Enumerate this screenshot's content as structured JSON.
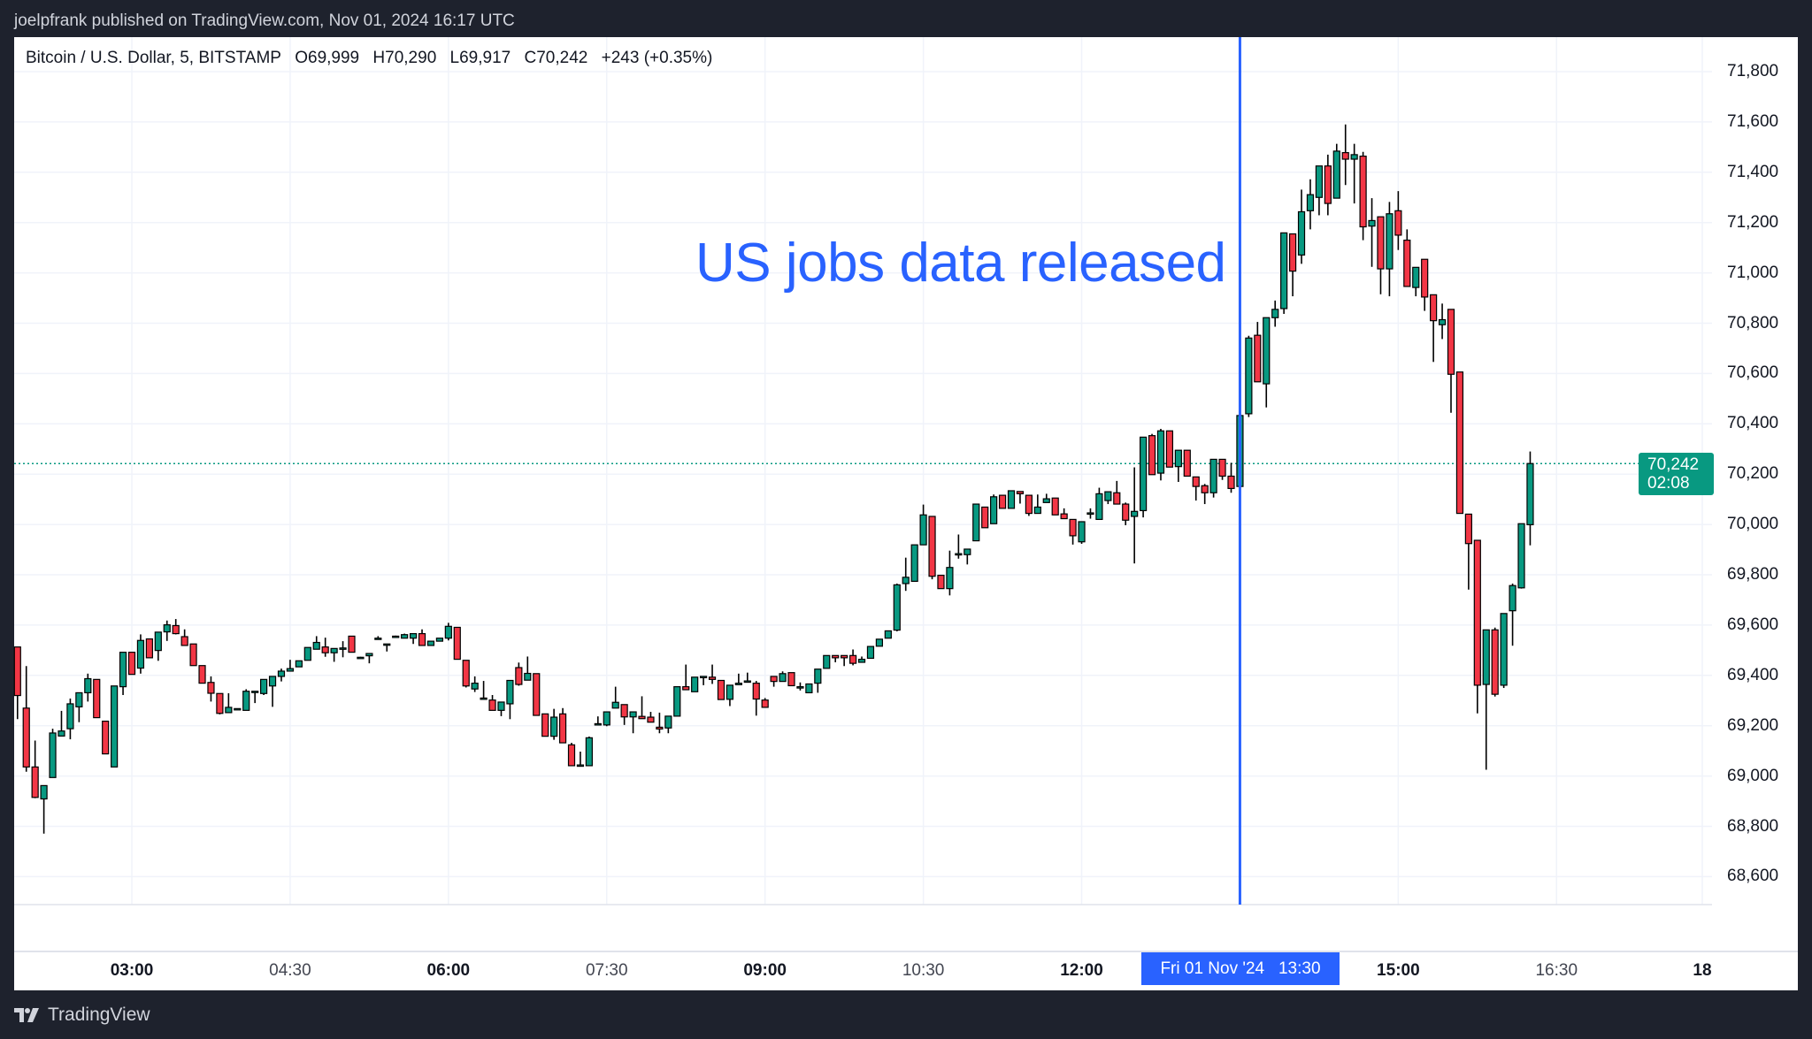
{
  "topbar": {
    "text": "joelpfrank published on TradingView.com, Nov 01, 2024 16:17 UTC"
  },
  "legend": {
    "symbol": "Bitcoin / U.S. Dollar, 5, BITSTAMP",
    "open": "O69,999",
    "high": "H70,290",
    "low": "L69,917",
    "close": "C70,242",
    "change": "+243 (+0.35%)"
  },
  "annotation": {
    "text": "US jobs data released",
    "color": "#2962ff"
  },
  "current_price": {
    "price": "70,242",
    "countdown": "02:08",
    "color": "#089981"
  },
  "crosshair": {
    "date": "Fri 01 Nov '24",
    "time": "13:30",
    "color": "#2962ff"
  },
  "brand": {
    "name": "TradingView"
  },
  "colors": {
    "up": "#089981",
    "down": "#f23645",
    "background": "#1e222d",
    "grid": "#f0f3fa"
  },
  "chart_data": {
    "type": "candlestick",
    "interval_minutes": 5,
    "ylim": [
      68500,
      71900
    ],
    "grid": true,
    "y_ticks": [
      "68,600",
      "68,800",
      "69,000",
      "69,200",
      "69,400",
      "69,600",
      "69,800",
      "70,000",
      "70,200",
      "70,400",
      "70,600",
      "70,800",
      "71,000",
      "71,200",
      "71,400",
      "71,600",
      "71,800"
    ],
    "x_ticks": [
      {
        "t": "03:00",
        "label": "03:00",
        "bold": true
      },
      {
        "t": "04:30",
        "label": "04:30",
        "bold": false
      },
      {
        "t": "06:00",
        "label": "06:00",
        "bold": true
      },
      {
        "t": "07:30",
        "label": "07:30",
        "bold": false
      },
      {
        "t": "09:00",
        "label": "09:00",
        "bold": true
      },
      {
        "t": "10:30",
        "label": "10:30",
        "bold": false
      },
      {
        "t": "12:00",
        "label": "12:00",
        "bold": true
      },
      {
        "t": "15:00",
        "label": "15:00",
        "bold": true
      },
      {
        "t": "16:30",
        "label": "16:30",
        "bold": false
      },
      {
        "t": "18:00",
        "label": "18",
        "bold": true
      }
    ],
    "event_line": {
      "t": "13:30",
      "label": "US jobs data released"
    },
    "last_price": 70242,
    "start_time": "01:55",
    "columns": [
      "open",
      "high",
      "low",
      "close"
    ],
    "candles": [
      [
        69513,
        69513,
        69226,
        69320
      ],
      [
        69270,
        69437,
        69017,
        69036
      ],
      [
        69036,
        69141,
        68912,
        68915
      ],
      [
        68909,
        68962,
        68771,
        68962
      ],
      [
        68994,
        69188,
        68994,
        69171
      ],
      [
        69159,
        69259,
        69159,
        69179
      ],
      [
        69188,
        69308,
        69146,
        69287
      ],
      [
        69275,
        69331,
        69214,
        69331
      ],
      [
        69331,
        69407,
        69296,
        69387
      ],
      [
        69384,
        69384,
        69232,
        69232
      ],
      [
        69218,
        69218,
        69088,
        69088
      ],
      [
        69036,
        69358,
        69036,
        69358
      ],
      [
        69355,
        69492,
        69322,
        69492
      ],
      [
        69492,
        69492,
        69404,
        69404
      ],
      [
        69429,
        69563,
        69407,
        69539
      ],
      [
        69545,
        69545,
        69470,
        69470
      ],
      [
        69499,
        69572,
        69458,
        69572
      ],
      [
        69573,
        69618,
        69537,
        69601
      ],
      [
        69598,
        69624,
        69563,
        69566
      ],
      [
        69554,
        69583,
        69519,
        69519
      ],
      [
        69525,
        69525,
        69439,
        69439
      ],
      [
        69439,
        69439,
        69369,
        69369
      ],
      [
        69372,
        69396,
        69296,
        69329
      ],
      [
        69328,
        69328,
        69245,
        69249
      ],
      [
        69252,
        69329,
        69252,
        69273
      ],
      [
        69267,
        69269,
        69265,
        69268
      ],
      [
        69261,
        69345,
        69261,
        69337
      ],
      [
        69337,
        69337,
        69290,
        69337
      ],
      [
        69328,
        69384,
        69322,
        69384
      ],
      [
        69358,
        69396,
        69275,
        69396
      ],
      [
        69396,
        69427,
        69376,
        69417
      ],
      [
        69417,
        69462,
        69417,
        69427
      ],
      [
        69434,
        69458,
        69434,
        69458
      ],
      [
        69460,
        69511,
        69460,
        69511
      ],
      [
        69504,
        69556,
        69504,
        69531
      ],
      [
        69513,
        69550,
        69474,
        69490
      ],
      [
        69490,
        69507,
        69454,
        69507
      ],
      [
        69509,
        69536,
        69472,
        69509
      ],
      [
        69556,
        69556,
        69492,
        69492
      ],
      [
        69472,
        69474,
        69470,
        69472
      ],
      [
        69478,
        69487,
        69448,
        69487
      ],
      [
        69548,
        69556,
        69548,
        69548
      ],
      [
        69525,
        69525,
        69495,
        69525
      ],
      [
        69556,
        69558,
        69554,
        69556
      ],
      [
        69548,
        69566,
        69548,
        69562
      ],
      [
        69548,
        69566,
        69525,
        69566
      ],
      [
        69566,
        69583,
        69519,
        69519
      ],
      [
        69519,
        69536,
        69519,
        69536
      ],
      [
        69536,
        69548,
        69536,
        69548
      ],
      [
        69548,
        69609,
        69539,
        69595
      ],
      [
        69591,
        69591,
        69464,
        69464
      ],
      [
        69460,
        69460,
        69352,
        69358
      ],
      [
        69346,
        69396,
        69334,
        69369
      ],
      [
        69310,
        69378,
        69310,
        69310
      ],
      [
        69302,
        69322,
        69261,
        69261
      ],
      [
        69261,
        69294,
        69238,
        69294
      ],
      [
        69287,
        69380,
        69226,
        69380
      ],
      [
        69431,
        69451,
        69359,
        69364
      ],
      [
        69381,
        69475,
        69381,
        69408
      ],
      [
        69407,
        69407,
        69241,
        69241
      ],
      [
        69247,
        69247,
        69158,
        69158
      ],
      [
        69158,
        69267,
        69144,
        69234
      ],
      [
        69247,
        69270,
        69132,
        69132
      ],
      [
        69124,
        69132,
        69041,
        69041
      ],
      [
        69044,
        69097,
        69044,
        69044
      ],
      [
        69041,
        69157,
        69041,
        69152
      ],
      [
        69208,
        69237,
        69203,
        69208
      ],
      [
        69203,
        69255,
        69198,
        69255
      ],
      [
        69270,
        69355,
        69270,
        69293
      ],
      [
        69284,
        69284,
        69203,
        69235
      ],
      [
        69235,
        69255,
        69170,
        69255
      ],
      [
        69237,
        69317,
        69228,
        69228
      ],
      [
        69234,
        69255,
        69214,
        69214
      ],
      [
        69194,
        69252,
        69170,
        69187
      ],
      [
        69191,
        69238,
        69170,
        69238
      ],
      [
        69238,
        69355,
        69238,
        69355
      ],
      [
        69355,
        69443,
        69343,
        69343
      ],
      [
        69335,
        69393,
        69335,
        69393
      ],
      [
        69396,
        69396,
        69361,
        69396
      ],
      [
        69393,
        69443,
        69366,
        69384
      ],
      [
        69380,
        69380,
        69304,
        69304
      ],
      [
        69305,
        69361,
        69278,
        69361
      ],
      [
        69363,
        69407,
        69363,
        69369
      ],
      [
        69378,
        69411,
        69378,
        69378
      ],
      [
        69369,
        69378,
        69240,
        69306
      ],
      [
        69302,
        69310,
        69273,
        69273
      ],
      [
        69396,
        69396,
        69355,
        69376
      ],
      [
        69376,
        69416,
        69376,
        69407
      ],
      [
        69411,
        69411,
        69359,
        69359
      ],
      [
        69355,
        69372,
        69340,
        69355
      ],
      [
        69331,
        69366,
        69331,
        69366
      ],
      [
        69369,
        69425,
        69331,
        69425
      ],
      [
        69428,
        69479,
        69428,
        69479
      ],
      [
        69479,
        69479,
        69452,
        69470
      ],
      [
        69479,
        69479,
        69437,
        69470
      ],
      [
        69479,
        69503,
        69440,
        69448
      ],
      [
        69452,
        69475,
        69452,
        69464
      ],
      [
        69468,
        69515,
        69468,
        69515
      ],
      [
        69516,
        69544,
        69516,
        69544
      ],
      [
        69548,
        69577,
        69548,
        69577
      ],
      [
        69580,
        69765,
        69575,
        69760
      ],
      [
        69765,
        69868,
        69736,
        69790
      ],
      [
        69774,
        69919,
        69774,
        69919
      ],
      [
        69919,
        70079,
        69919,
        70038
      ],
      [
        70032,
        70032,
        69782,
        69794
      ],
      [
        69798,
        69798,
        69745,
        69745
      ],
      [
        69745,
        69896,
        69718,
        69829
      ],
      [
        69884,
        69960,
        69864,
        69884
      ],
      [
        69880,
        69902,
        69841,
        69902
      ],
      [
        69935,
        70081,
        69935,
        70081
      ],
      [
        70069,
        70069,
        69987,
        69987
      ],
      [
        70003,
        70119,
        70003,
        70110
      ],
      [
        70116,
        70116,
        70064,
        70064
      ],
      [
        70064,
        70134,
        70064,
        70134
      ],
      [
        70131,
        70131,
        70083,
        70122
      ],
      [
        70116,
        70116,
        70034,
        70044
      ],
      [
        70044,
        70119,
        70044,
        70069
      ],
      [
        70087,
        70122,
        70087,
        70102
      ],
      [
        70105,
        70105,
        70038,
        70038
      ],
      [
        70042,
        70064,
        70023,
        70023
      ],
      [
        70020,
        70020,
        69920,
        69955
      ],
      [
        69931,
        70011,
        69923,
        70011
      ],
      [
        70046,
        70064,
        70023,
        70046
      ],
      [
        70020,
        70146,
        70020,
        70122
      ],
      [
        70095,
        70130,
        70081,
        70130
      ],
      [
        70126,
        70173,
        70081,
        70081
      ],
      [
        70081,
        70087,
        69997,
        70017
      ],
      [
        70032,
        70227,
        69845,
        70052
      ],
      [
        70055,
        70347,
        70028,
        70347
      ],
      [
        70353,
        70360,
        70198,
        70198
      ],
      [
        70204,
        70380,
        70175,
        70372
      ],
      [
        70372,
        70372,
        70228,
        70228
      ],
      [
        70230,
        70295,
        70169,
        70295
      ],
      [
        70295,
        70295,
        70192,
        70192
      ],
      [
        70189,
        70189,
        70095,
        70151
      ],
      [
        70154,
        70161,
        70081,
        70126
      ],
      [
        70126,
        70259,
        70107,
        70259
      ],
      [
        70259,
        70259,
        70177,
        70192
      ],
      [
        70192,
        70245,
        70126,
        70143
      ],
      [
        70151,
        70474,
        70099,
        70433
      ],
      [
        70440,
        70750,
        70427,
        70741
      ],
      [
        70752,
        70805,
        70567,
        70567
      ],
      [
        70559,
        70822,
        70465,
        70822
      ],
      [
        70822,
        70890,
        70786,
        70855
      ],
      [
        70858,
        71159,
        70837,
        71159
      ],
      [
        71155,
        71155,
        70907,
        71007
      ],
      [
        71071,
        71331,
        71036,
        71243
      ],
      [
        71247,
        71372,
        71173,
        71311
      ],
      [
        71300,
        71425,
        71229,
        71425
      ],
      [
        71425,
        71470,
        71229,
        71276
      ],
      [
        71297,
        71513,
        71297,
        71484
      ],
      [
        71478,
        71590,
        71349,
        71452
      ],
      [
        71452,
        71513,
        71276,
        71470
      ],
      [
        71464,
        71481,
        71130,
        71183
      ],
      [
        71186,
        71297,
        71024,
        71208
      ],
      [
        71223,
        71223,
        70915,
        71016
      ],
      [
        71016,
        71282,
        70907,
        71235
      ],
      [
        71247,
        71325,
        71091,
        71150
      ],
      [
        71130,
        71173,
        70946,
        70946
      ],
      [
        70942,
        71022,
        70907,
        71022
      ],
      [
        71054,
        71054,
        70849,
        70904
      ],
      [
        70913,
        70913,
        70646,
        70810
      ],
      [
        70794,
        70878,
        70737,
        70814
      ],
      [
        70855,
        70855,
        70444,
        70597
      ],
      [
        70606,
        70606,
        70044,
        70044
      ],
      [
        70041,
        70041,
        69741,
        69924
      ],
      [
        69937,
        69937,
        69249,
        69361
      ],
      [
        69364,
        69581,
        69025,
        69581
      ],
      [
        69581,
        69590,
        69316,
        69325
      ],
      [
        69361,
        69646,
        69350,
        69646
      ],
      [
        69657,
        69765,
        69518,
        69757
      ],
      [
        69748,
        70003,
        69745,
        70003
      ],
      [
        69999,
        70290,
        69917,
        70242
      ]
    ]
  }
}
